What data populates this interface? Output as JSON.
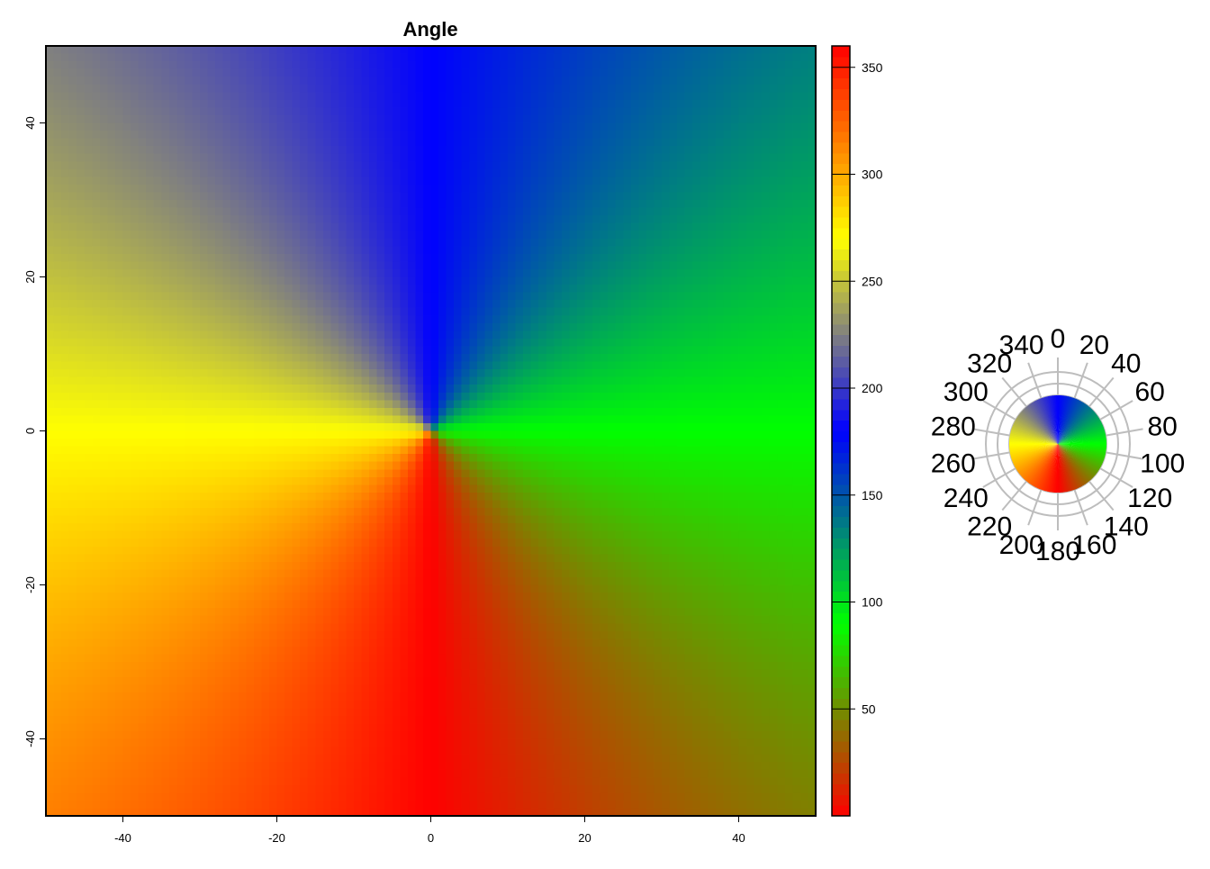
{
  "chart_data": [
    {
      "type": "heatmap",
      "title": "Angle",
      "xlabel": "",
      "ylabel": "",
      "xlim": [
        -50,
        50
      ],
      "ylim": [
        -50,
        50
      ],
      "x_ticks": [
        -40,
        -20,
        0,
        20,
        40
      ],
      "y_ticks": [
        -40,
        -20,
        0,
        20,
        40
      ],
      "value_definition": "bearing angle in degrees, 0 = down (-y), increasing counterclockwise",
      "colorbar": {
        "range": [
          0,
          360
        ],
        "ticks": [
          50,
          100,
          150,
          200,
          250,
          300,
          350
        ],
        "color_stops": [
          {
            "value": 0,
            "color": "#ff0000"
          },
          {
            "value": 90,
            "color": "#00ff00"
          },
          {
            "value": 180,
            "color": "#0000ff"
          },
          {
            "value": 270,
            "color": "#ffff00"
          },
          {
            "value": 360,
            "color": "#ff0000"
          }
        ]
      },
      "grid": false
    },
    {
      "type": "pie",
      "title": "",
      "angle_labels": [
        "0",
        "20",
        "40",
        "60",
        "80",
        "100",
        "120",
        "140",
        "160",
        "180",
        "200",
        "220",
        "240",
        "260",
        "280",
        "300",
        "320",
        "340"
      ],
      "color_stops": [
        {
          "value": 0,
          "color": "#ff0000"
        },
        {
          "value": 90,
          "color": "#00ff00"
        },
        {
          "value": 180,
          "color": "#0000ff"
        },
        {
          "value": 270,
          "color": "#ffff00"
        },
        {
          "value": 360,
          "color": "#ff0000"
        }
      ]
    }
  ]
}
